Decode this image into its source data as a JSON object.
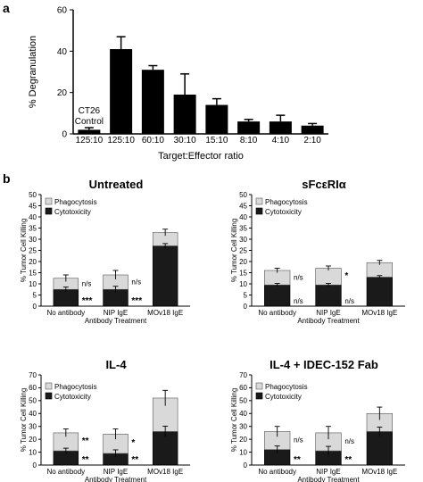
{
  "panel_labels": [
    "a",
    "b"
  ],
  "chart_data": [
    {
      "type": "bar",
      "panel": "a",
      "title": "",
      "categories": [
        "125:10",
        "125:10",
        "60:10",
        "30:10",
        "15:10",
        "8:10",
        "4:10",
        "2:10"
      ],
      "values": [
        2,
        41,
        31,
        19,
        14,
        6,
        6,
        4
      ],
      "errors": [
        1,
        6,
        2,
        10,
        3,
        1,
        3,
        1
      ],
      "xlabel": "Target:Effector ratio",
      "ylabel": "% Degranulation",
      "ylim": [
        0,
        60
      ],
      "yticks": [
        0,
        20,
        40,
        60
      ],
      "bar_color": "#000000",
      "annotations": [
        {
          "text": "CT26",
          "bar": 0
        },
        {
          "text": "Control",
          "bar": 0
        }
      ],
      "grid": false
    },
    {
      "type": "bar",
      "panel": "b",
      "title": "Untreated",
      "stacked": true,
      "categories": [
        "No antibody",
        "NIP IgE",
        "MOv18 IgE"
      ],
      "series": [
        {
          "name": "Cytotoxicity",
          "values": [
            7.5,
            7.5,
            27
          ],
          "color": "#1a1a1a"
        },
        {
          "name": "Phagocytosis",
          "values": [
            5,
            6.5,
            6
          ],
          "color": "#d9d9d9"
        }
      ],
      "errors": [
        1.5,
        2,
        1.5
      ],
      "annotations": [
        {
          "bar": 0,
          "top": "n/s",
          "bottom": "***"
        },
        {
          "bar": 1,
          "top": "n/s",
          "bottom": "***"
        }
      ],
      "xlabel": "Antibody Treatment",
      "ylabel": "% Tumor Cell Killing",
      "ylim": [
        0,
        50
      ],
      "yticks": [
        0,
        5,
        10,
        15,
        20,
        25,
        30,
        35,
        40,
        45,
        50
      ],
      "legend": "top-left",
      "grid": false
    },
    {
      "type": "bar",
      "panel": "b",
      "title": "sFcεRIα",
      "stacked": true,
      "categories": [
        "No antibody",
        "NIP IgE",
        "MOv18 IgE"
      ],
      "series": [
        {
          "name": "Cytotoxicity",
          "values": [
            9.5,
            9.5,
            13
          ],
          "color": "#1a1a1a"
        },
        {
          "name": "Phagocytosis",
          "values": [
            6.5,
            7.5,
            6.5
          ],
          "color": "#d9d9d9"
        }
      ],
      "errors": [
        1,
        1,
        1
      ],
      "annotations": [
        {
          "bar": 0,
          "top": "n/s",
          "bottom": "n/s"
        },
        {
          "bar": 1,
          "top": "*",
          "bottom": "n/s"
        }
      ],
      "xlabel": "Antibody Treatment",
      "ylabel": "% Tumor Cell Killing",
      "ylim": [
        0,
        50
      ],
      "yticks": [
        0,
        5,
        10,
        15,
        20,
        25,
        30,
        35,
        40,
        45,
        50
      ],
      "legend": "top-left",
      "grid": false
    },
    {
      "type": "bar",
      "panel": "b",
      "title": "IL-4",
      "stacked": true,
      "categories": [
        "No antibody",
        "NIP IgE",
        "MOv18 IgE"
      ],
      "series": [
        {
          "name": "Cytotoxicity",
          "values": [
            11,
            9,
            26
          ],
          "color": "#1a1a1a"
        },
        {
          "name": "Phagocytosis",
          "values": [
            14,
            15,
            26
          ],
          "color": "#d9d9d9"
        }
      ],
      "errors": [
        3,
        4,
        6
      ],
      "annotations": [
        {
          "bar": 0,
          "top": "**",
          "bottom": "**"
        },
        {
          "bar": 1,
          "top": "*",
          "bottom": "**"
        }
      ],
      "xlabel": "Antibody Treatment",
      "ylabel": "% Tumor Cell Killing",
      "ylim": [
        0,
        70
      ],
      "yticks": [
        0,
        10,
        20,
        30,
        40,
        50,
        60,
        70
      ],
      "legend": "top-left",
      "grid": false
    },
    {
      "type": "bar",
      "panel": "b",
      "title": "IL-4 + IDEC-152 Fab",
      "stacked": true,
      "categories": [
        "No antibody",
        "NIP IgE",
        "MOv18 IgE"
      ],
      "series": [
        {
          "name": "Cytotoxicity",
          "values": [
            12,
            11,
            26
          ],
          "color": "#1a1a1a"
        },
        {
          "name": "Phagocytosis",
          "values": [
            14,
            14,
            14
          ],
          "color": "#d9d9d9"
        }
      ],
      "errors": [
        4,
        5,
        5
      ],
      "annotations": [
        {
          "bar": 0,
          "top": "n/s",
          "bottom": "**"
        },
        {
          "bar": 1,
          "top": "n/s",
          "bottom": "**"
        }
      ],
      "xlabel": "Antibody Treatment",
      "ylabel": "% Tumor Cell Killing",
      "ylim": [
        0,
        70
      ],
      "yticks": [
        0,
        10,
        20,
        30,
        40,
        50,
        60,
        70
      ],
      "legend": "top-left",
      "grid": false
    }
  ]
}
